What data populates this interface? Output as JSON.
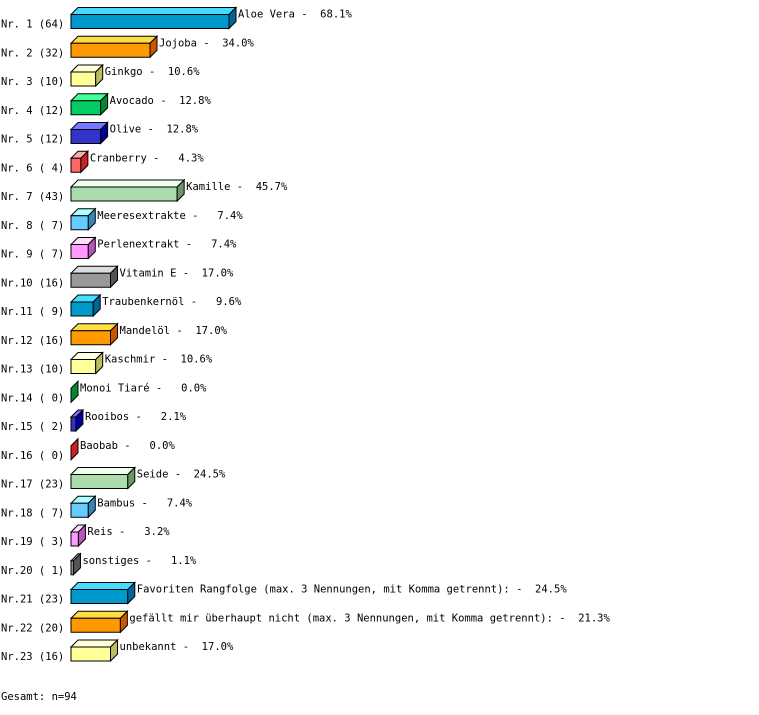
{
  "chart_data": {
    "type": "bar",
    "orientation": "horizontal",
    "style": "3d",
    "rows": [
      {
        "rank": "Nr. 1 (64)",
        "category": "Aloe Vera",
        "count": 64,
        "percent": 68.1,
        "label": "Aloe Vera -  68.1%"
      },
      {
        "rank": "Nr. 2 (32)",
        "category": "Jojoba",
        "count": 32,
        "percent": 34.0,
        "label": "Jojoba -  34.0%"
      },
      {
        "rank": "Nr. 3 (10)",
        "category": "Ginkgo",
        "count": 10,
        "percent": 10.6,
        "label": "Ginkgo -  10.6%"
      },
      {
        "rank": "Nr. 4 (12)",
        "category": "Avocado",
        "count": 12,
        "percent": 12.8,
        "label": "Avocado -  12.8%"
      },
      {
        "rank": "Nr. 5 (12)",
        "category": "Olive",
        "count": 12,
        "percent": 12.8,
        "label": "Olive -  12.8%"
      },
      {
        "rank": "Nr. 6 ( 4)",
        "category": "Cranberry",
        "count": 4,
        "percent": 4.3,
        "label": "Cranberry -   4.3%"
      },
      {
        "rank": "Nr. 7 (43)",
        "category": "Kamille",
        "count": 43,
        "percent": 45.7,
        "label": "Kamille -  45.7%"
      },
      {
        "rank": "Nr. 8 ( 7)",
        "category": "Meeresextrakte",
        "count": 7,
        "percent": 7.4,
        "label": "Meeresextrakte -   7.4%"
      },
      {
        "rank": "Nr. 9 ( 7)",
        "category": "Perlenextrakt",
        "count": 7,
        "percent": 7.4,
        "label": "Perlenextrakt -   7.4%"
      },
      {
        "rank": "Nr.10 (16)",
        "category": "Vitamin E",
        "count": 16,
        "percent": 17.0,
        "label": "Vitamin E -  17.0%"
      },
      {
        "rank": "Nr.11 ( 9)",
        "category": "Traubenkernöl",
        "count": 9,
        "percent": 9.6,
        "label": "Traubenkernöl -   9.6%"
      },
      {
        "rank": "Nr.12 (16)",
        "category": "Mandelöl",
        "count": 16,
        "percent": 17.0,
        "label": "Mandelöl -  17.0%"
      },
      {
        "rank": "Nr.13 (10)",
        "category": "Kaschmir",
        "count": 10,
        "percent": 10.6,
        "label": "Kaschmir -  10.6%"
      },
      {
        "rank": "Nr.14 ( 0)",
        "category": "Monoi Tiaré",
        "count": 0,
        "percent": 0.0,
        "label": "Monoi Tiaré -   0.0%"
      },
      {
        "rank": "Nr.15 ( 2)",
        "category": "Rooibos",
        "count": 2,
        "percent": 2.1,
        "label": "Rooibos -   2.1%"
      },
      {
        "rank": "Nr.16 ( 0)",
        "category": "Baobab",
        "count": 0,
        "percent": 0.0,
        "label": "Baobab -   0.0%"
      },
      {
        "rank": "Nr.17 (23)",
        "category": "Seide",
        "count": 23,
        "percent": 24.5,
        "label": "Seide -  24.5%"
      },
      {
        "rank": "Nr.18 ( 7)",
        "category": "Bambus",
        "count": 7,
        "percent": 7.4,
        "label": "Bambus -   7.4%"
      },
      {
        "rank": "Nr.19 ( 3)",
        "category": "Reis",
        "count": 3,
        "percent": 3.2,
        "label": "Reis -   3.2%"
      },
      {
        "rank": "Nr.20 ( 1)",
        "category": "sonstiges",
        "count": 1,
        "percent": 1.1,
        "label": "sonstiges -   1.1%"
      },
      {
        "rank": "Nr.21 (23)",
        "category": "Favoriten Rangfolge (max. 3 Nennungen, mit Komma getrennt):",
        "count": 23,
        "percent": 24.5,
        "label": "Favoriten Rangfolge (max. 3 Nennungen, mit Komma getrennt): -  24.5%"
      },
      {
        "rank": "Nr.22 (20)",
        "category": "gefällt mir überhaupt nicht (max. 3 Nennungen, mit Komma getrennt):",
        "count": 20,
        "percent": 21.3,
        "label": "gefällt mir überhaupt nicht (max. 3 Nennungen, mit Komma getrennt): -  21.3%"
      },
      {
        "rank": "Nr.23 (16)",
        "category": "unbekannt",
        "count": 16,
        "percent": 17.0,
        "label": "unbekannt -  17.0%"
      }
    ],
    "palette": [
      {
        "front": "#0099cc",
        "top": "#44ddff",
        "side": "#006699"
      },
      {
        "front": "#ff9900",
        "top": "#ffdd44",
        "side": "#cc5500"
      },
      {
        "front": "#ffff99",
        "top": "#ffffdd",
        "side": "#bbbb66"
      },
      {
        "front": "#00cc66",
        "top": "#44ff99",
        "side": "#008833"
      },
      {
        "front": "#3333cc",
        "top": "#7777ff",
        "side": "#000099"
      },
      {
        "front": "#ff6666",
        "top": "#ffaaaa",
        "side": "#cc2222"
      },
      {
        "front": "#aaddaa",
        "top": "#eeffee",
        "side": "#669966"
      },
      {
        "front": "#66ccff",
        "top": "#aaffff",
        "side": "#3388bb"
      },
      {
        "front": "#ff99ff",
        "top": "#ffddff",
        "side": "#bb55bb"
      },
      {
        "front": "#999999",
        "top": "#dddddd",
        "side": "#555555"
      }
    ],
    "total": "Gesamt: n=94"
  }
}
